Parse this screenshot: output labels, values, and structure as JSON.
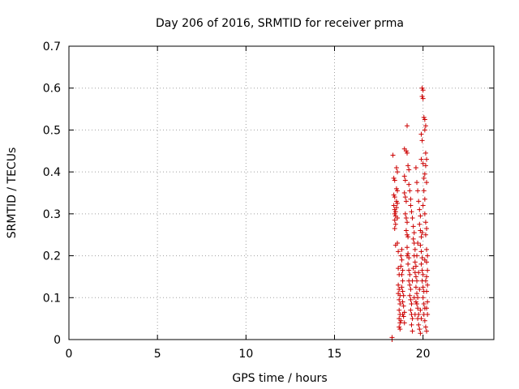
{
  "chart_data": {
    "type": "scatter",
    "title": "Day 206 of 2016, SRMTID for receiver prma",
    "xlabel": "GPS time / hours",
    "ylabel": "SRMTID / TECUs",
    "xlim": [
      0,
      24
    ],
    "ylim": [
      0,
      0.7
    ],
    "xticks": [
      0,
      5,
      10,
      15,
      20
    ],
    "xtick_labels": [
      "0",
      "5",
      "10",
      "15",
      "20"
    ],
    "yticks": [
      0,
      0.1,
      0.2,
      0.3,
      0.4,
      0.5,
      0.6,
      0.7
    ],
    "ytick_labels": [
      "0",
      "0.1",
      "0.2",
      "0.3",
      "0.4",
      "0.5",
      "0.6",
      "0.7"
    ],
    "grid": true,
    "marker": "plus",
    "color": "#cc0000",
    "series": [
      {
        "points": [
          [
            18.25,
            0.0
          ],
          [
            18.25,
            0.005
          ],
          [
            18.3,
            0.44
          ],
          [
            18.35,
            0.385
          ],
          [
            18.4,
            0.38
          ],
          [
            18.35,
            0.345
          ],
          [
            18.4,
            0.34
          ],
          [
            18.35,
            0.32
          ],
          [
            18.4,
            0.31
          ],
          [
            18.45,
            0.305
          ],
          [
            18.4,
            0.3
          ],
          [
            18.45,
            0.295
          ],
          [
            18.4,
            0.285
          ],
          [
            18.45,
            0.275
          ],
          [
            18.4,
            0.265
          ],
          [
            18.5,
            0.41
          ],
          [
            18.55,
            0.4
          ],
          [
            18.5,
            0.36
          ],
          [
            18.55,
            0.355
          ],
          [
            18.5,
            0.33
          ],
          [
            18.55,
            0.325
          ],
          [
            18.5,
            0.315
          ],
          [
            18.55,
            0.29
          ],
          [
            18.45,
            0.225
          ],
          [
            18.55,
            0.23
          ],
          [
            18.6,
            0.21
          ],
          [
            18.6,
            0.17
          ],
          [
            18.65,
            0.155
          ],
          [
            18.6,
            0.13
          ],
          [
            18.65,
            0.12
          ],
          [
            18.6,
            0.11
          ],
          [
            18.7,
            0.105
          ],
          [
            18.65,
            0.095
          ],
          [
            18.7,
            0.085
          ],
          [
            18.65,
            0.07
          ],
          [
            18.7,
            0.06
          ],
          [
            18.65,
            0.05
          ],
          [
            18.7,
            0.04
          ],
          [
            18.65,
            0.03
          ],
          [
            18.7,
            0.025
          ],
          [
            18.75,
            0.045
          ],
          [
            18.8,
            0.215
          ],
          [
            18.8,
            0.19
          ],
          [
            18.75,
            0.175
          ],
          [
            18.85,
            0.165
          ],
          [
            18.8,
            0.155
          ],
          [
            18.85,
            0.14
          ],
          [
            18.8,
            0.125
          ],
          [
            18.85,
            0.115
          ],
          [
            18.9,
            0.105
          ],
          [
            18.85,
            0.09
          ],
          [
            18.9,
            0.08
          ],
          [
            18.95,
            0.065
          ],
          [
            18.9,
            0.055
          ],
          [
            18.95,
            0.04
          ],
          [
            18.95,
            0.39
          ],
          [
            19.0,
            0.38
          ],
          [
            18.95,
            0.35
          ],
          [
            19.0,
            0.34
          ],
          [
            19.05,
            0.33
          ],
          [
            19.0,
            0.3
          ],
          [
            19.05,
            0.29
          ],
          [
            19.1,
            0.28
          ],
          [
            19.05,
            0.26
          ],
          [
            19.1,
            0.25
          ],
          [
            19.15,
            0.245
          ],
          [
            19.1,
            0.22
          ],
          [
            19.15,
            0.205
          ],
          [
            19.2,
            0.195
          ],
          [
            19.15,
            0.18
          ],
          [
            19.2,
            0.165
          ],
          [
            19.25,
            0.155
          ],
          [
            19.2,
            0.14
          ],
          [
            19.25,
            0.13
          ],
          [
            19.3,
            0.12
          ],
          [
            19.25,
            0.105
          ],
          [
            19.3,
            0.095
          ],
          [
            19.35,
            0.085
          ],
          [
            19.3,
            0.07
          ],
          [
            19.35,
            0.06
          ],
          [
            19.4,
            0.05
          ],
          [
            19.35,
            0.035
          ],
          [
            19.4,
            0.02
          ],
          [
            18.95,
            0.455
          ],
          [
            19.05,
            0.45
          ],
          [
            19.1,
            0.445
          ],
          [
            19.1,
            0.51
          ],
          [
            19.15,
            0.415
          ],
          [
            19.2,
            0.405
          ],
          [
            19.25,
            0.355
          ],
          [
            19.3,
            0.335
          ],
          [
            19.35,
            0.305
          ],
          [
            19.4,
            0.29
          ],
          [
            19.45,
            0.27
          ],
          [
            19.5,
            0.255
          ],
          [
            19.45,
            0.24
          ],
          [
            19.5,
            0.23
          ],
          [
            19.55,
            0.215
          ],
          [
            19.5,
            0.2
          ],
          [
            19.55,
            0.185
          ],
          [
            19.6,
            0.175
          ],
          [
            19.55,
            0.16
          ],
          [
            19.6,
            0.15
          ],
          [
            19.65,
            0.14
          ],
          [
            19.6,
            0.125
          ],
          [
            19.65,
            0.11
          ],
          [
            19.7,
            0.1
          ],
          [
            19.65,
            0.085
          ],
          [
            19.7,
            0.075
          ],
          [
            19.75,
            0.06
          ],
          [
            19.7,
            0.05
          ],
          [
            19.75,
            0.035
          ],
          [
            19.8,
            0.025
          ],
          [
            19.85,
            0.015
          ],
          [
            19.6,
            0.41
          ],
          [
            19.65,
            0.375
          ],
          [
            19.7,
            0.355
          ],
          [
            19.75,
            0.33
          ],
          [
            19.8,
            0.31
          ],
          [
            19.85,
            0.295
          ],
          [
            19.8,
            0.275
          ],
          [
            19.85,
            0.26
          ],
          [
            19.9,
            0.245
          ],
          [
            19.85,
            0.225
          ],
          [
            19.9,
            0.21
          ],
          [
            19.95,
            0.195
          ],
          [
            19.9,
            0.18
          ],
          [
            19.95,
            0.165
          ],
          [
            20.0,
            0.155
          ],
          [
            19.95,
            0.14
          ],
          [
            20.0,
            0.125
          ],
          [
            20.05,
            0.115
          ],
          [
            20.0,
            0.1
          ],
          [
            20.05,
            0.085
          ],
          [
            20.1,
            0.075
          ],
          [
            20.05,
            0.06
          ],
          [
            20.1,
            0.045
          ],
          [
            20.15,
            0.03
          ],
          [
            19.95,
            0.6
          ],
          [
            20.0,
            0.595
          ],
          [
            19.95,
            0.58
          ],
          [
            20.0,
            0.575
          ],
          [
            20.05,
            0.53
          ],
          [
            20.1,
            0.525
          ],
          [
            20.15,
            0.51
          ],
          [
            20.1,
            0.5
          ],
          [
            19.9,
            0.49
          ],
          [
            19.95,
            0.475
          ],
          [
            19.9,
            0.43
          ],
          [
            20.0,
            0.42
          ],
          [
            20.15,
            0.445
          ],
          [
            20.2,
            0.43
          ],
          [
            20.15,
            0.415
          ],
          [
            20.1,
            0.395
          ],
          [
            20.2,
            0.375
          ],
          [
            20.05,
            0.355
          ],
          [
            20.1,
            0.335
          ],
          [
            20.0,
            0.32
          ],
          [
            20.1,
            0.3
          ],
          [
            20.15,
            0.28
          ],
          [
            20.2,
            0.265
          ],
          [
            20.15,
            0.25
          ],
          [
            20.2,
            0.215
          ],
          [
            20.25,
            0.2
          ],
          [
            20.2,
            0.185
          ],
          [
            20.25,
            0.165
          ],
          [
            20.2,
            0.15
          ],
          [
            20.25,
            0.13
          ],
          [
            20.2,
            0.115
          ],
          [
            20.25,
            0.09
          ],
          [
            20.2,
            0.075
          ],
          [
            20.25,
            0.06
          ],
          [
            20.2,
            0.02
          ],
          [
            19.1,
            0.2
          ],
          [
            19.2,
            0.37
          ],
          [
            19.3,
            0.32
          ],
          [
            19.4,
            0.14
          ],
          [
            19.45,
            0.17
          ],
          [
            19.5,
            0.1
          ],
          [
            19.55,
            0.06
          ],
          [
            19.6,
            0.09
          ],
          [
            19.65,
            0.2
          ],
          [
            19.7,
            0.23
          ],
          [
            19.75,
            0.16
          ],
          [
            19.8,
            0.12
          ],
          [
            19.85,
            0.07
          ],
          [
            19.9,
            0.05
          ],
          [
            19.95,
            0.255
          ],
          [
            20.05,
            0.385
          ],
          [
            20.1,
            0.19
          ],
          [
            20.15,
            0.14
          ],
          [
            18.75,
            0.2
          ],
          [
            18.85,
            0.06
          ]
        ]
      }
    ]
  }
}
